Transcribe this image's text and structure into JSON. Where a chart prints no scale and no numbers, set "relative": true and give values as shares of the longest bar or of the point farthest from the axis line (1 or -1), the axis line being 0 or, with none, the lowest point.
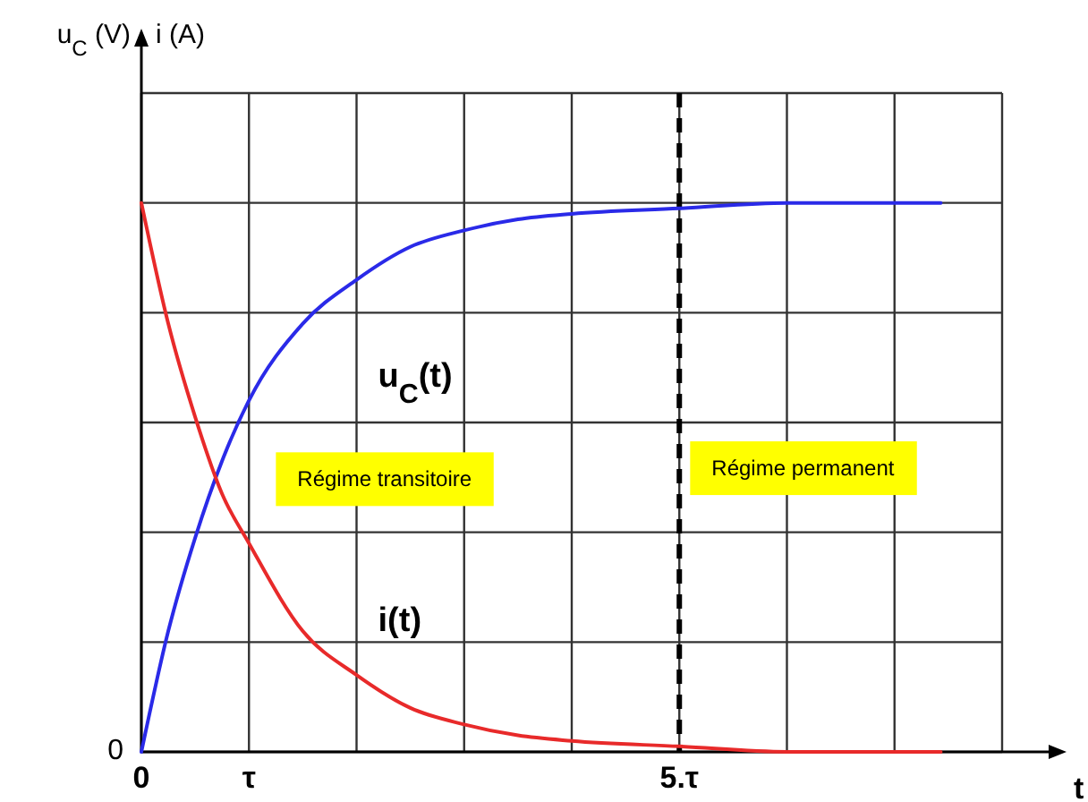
{
  "chart_data": {
    "type": "line",
    "relative": true,
    "xlabel": "t",
    "xlim": [
      0,
      8
    ],
    "xticks": [
      0,
      {
        "value": 1,
        "label": "τ"
      },
      {
        "value": 5,
        "label": "5.τ"
      }
    ],
    "grid": true,
    "line_style": "solid",
    "marker": "none",
    "series": [
      {
        "name": "u$_{C}$(t)",
        "color": "#2a2ae8",
        "x": [
          0,
          0.25,
          0.5,
          0.75,
          1,
          1.5,
          2,
          2.5,
          3,
          3.5,
          4,
          5,
          6,
          7.43
        ],
        "values": [
          0,
          0.22,
          0.39,
          0.53,
          0.64,
          0.78,
          0.86,
          0.92,
          0.95,
          0.97,
          0.98,
          0.99,
          1,
          1
        ]
      },
      {
        "name": "i(t)",
        "color": "#e82a2a",
        "x": [
          0,
          0.25,
          0.5,
          0.75,
          1,
          1.5,
          2,
          2.5,
          3,
          3.5,
          4,
          5,
          6,
          7.43
        ],
        "values": [
          1,
          0.78,
          0.61,
          0.47,
          0.38,
          0.22,
          0.14,
          0.08,
          0.05,
          0.03,
          0.02,
          0.01,
          0,
          0
        ]
      }
    ],
    "ref_lines": [
      {
        "axis": "x",
        "value": 5,
        "color": "#000000",
        "line_style": "dashed"
      }
    ],
    "annotations": [
      "u$_{C}$ (V)",
      "i (A)",
      "0",
      "Régime transitoire",
      "Régime permanent"
    ]
  }
}
